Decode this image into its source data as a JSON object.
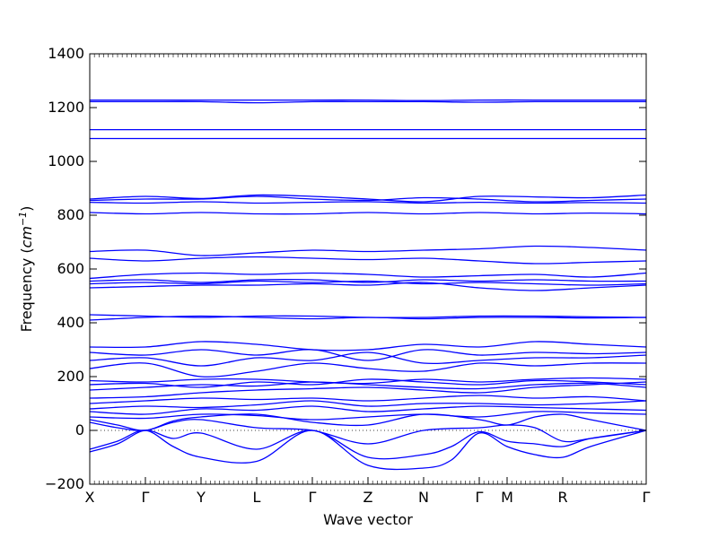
{
  "chart_data": {
    "type": "line",
    "title": "",
    "xlabel": "Wave vector",
    "ylabel": "Frequency ($cm^{-1}$)",
    "ylabel_plain": "Frequency (",
    "ylabel_unit": "cm",
    "ylabel_exp": "−1",
    "ylabel_close": ")",
    "ylim": [
      -200,
      1400
    ],
    "y_ticks": [
      -200,
      0,
      200,
      400,
      600,
      800,
      1000,
      1200,
      1400
    ],
    "x_ticks": [
      "X",
      "Γ",
      "Y",
      "L",
      "Γ",
      "Z",
      "N",
      "Γ",
      "M",
      "R",
      "Γ"
    ],
    "x_tick_positions": [
      0,
      0.1,
      0.2,
      0.3,
      0.4,
      0.5,
      0.6,
      0.7,
      0.75,
      0.85,
      1
    ],
    "grid": false,
    "line_color": "#0000ff",
    "series": [
      {
        "x": [
          0,
          0.05,
          0.1,
          0.15,
          0.2,
          0.3,
          0.4,
          0.5,
          0.6,
          0.65,
          0.7,
          0.75,
          0.8,
          0.85,
          0.9,
          1
        ],
        "y": [
          -70,
          -40,
          0,
          -60,
          -100,
          -115,
          0,
          -130,
          -140,
          -110,
          -10,
          -60,
          -90,
          -100,
          -60,
          0
        ]
      },
      {
        "x": [
          0,
          0.05,
          0.1,
          0.15,
          0.2,
          0.3,
          0.4,
          0.5,
          0.6,
          0.65,
          0.7,
          0.75,
          0.8,
          0.85,
          0.9,
          1
        ],
        "y": [
          -80,
          -50,
          0,
          -30,
          -10,
          -70,
          0,
          -100,
          -90,
          -60,
          -5,
          -40,
          -50,
          -60,
          -30,
          0
        ]
      },
      {
        "x": [
          0,
          0.05,
          0.1,
          0.15,
          0.2,
          0.3,
          0.4,
          0.5,
          0.6,
          0.7,
          0.75,
          0.8,
          0.85,
          0.9,
          1
        ],
        "y": [
          30,
          10,
          0,
          30,
          40,
          10,
          0,
          -50,
          0,
          10,
          20,
          10,
          -40,
          -30,
          0
        ]
      },
      {
        "x": [
          0,
          0.05,
          0.1,
          0.15,
          0.2,
          0.3,
          0.4,
          0.5,
          0.6,
          0.7,
          0.75,
          0.8,
          0.85,
          0.9,
          1
        ],
        "y": [
          40,
          20,
          0,
          35,
          50,
          60,
          30,
          20,
          60,
          40,
          20,
          50,
          60,
          40,
          0
        ]
      },
      {
        "x": [
          0,
          0.1,
          0.2,
          0.3,
          0.4,
          0.5,
          0.6,
          0.7,
          0.8,
          0.9,
          1
        ],
        "y": [
          50,
          45,
          60,
          55,
          40,
          50,
          60,
          50,
          70,
          65,
          60
        ]
      },
      {
        "x": [
          0,
          0.1,
          0.2,
          0.3,
          0.4,
          0.5,
          0.6,
          0.7,
          0.8,
          0.9,
          1
        ],
        "y": [
          70,
          60,
          80,
          75,
          90,
          70,
          80,
          90,
          85,
          80,
          75
        ]
      },
      {
        "x": [
          0,
          0.1,
          0.2,
          0.3,
          0.4,
          0.5,
          0.6,
          0.7,
          0.8,
          0.9,
          1
        ],
        "y": [
          80,
          90,
          85,
          95,
          110,
          90,
          100,
          100,
          95,
          100,
          110
        ]
      },
      {
        "x": [
          0,
          0.1,
          0.2,
          0.3,
          0.4,
          0.5,
          0.6,
          0.7,
          0.8,
          0.9,
          1
        ],
        "y": [
          100,
          110,
          120,
          115,
          120,
          110,
          120,
          130,
          120,
          125,
          110
        ]
      },
      {
        "x": [
          0,
          0.1,
          0.2,
          0.3,
          0.4,
          0.5,
          0.6,
          0.7,
          0.8,
          0.9,
          1
        ],
        "y": [
          120,
          125,
          140,
          150,
          155,
          160,
          150,
          140,
          160,
          170,
          180
        ]
      },
      {
        "x": [
          0,
          0.1,
          0.2,
          0.3,
          0.4,
          0.5,
          0.6,
          0.7,
          0.8,
          0.9,
          1
        ],
        "y": [
          150,
          160,
          170,
          165,
          180,
          170,
          160,
          155,
          170,
          175,
          160
        ]
      },
      {
        "x": [
          0,
          0.1,
          0.2,
          0.3,
          0.4,
          0.5,
          0.6,
          0.7,
          0.8,
          0.9,
          1
        ],
        "y": [
          170,
          175,
          160,
          180,
          170,
          190,
          180,
          170,
          185,
          180,
          170
        ]
      },
      {
        "x": [
          0,
          0.1,
          0.2,
          0.3,
          0.4,
          0.5,
          0.6,
          0.7,
          0.8,
          0.9,
          1
        ],
        "y": [
          185,
          180,
          190,
          190,
          180,
          175,
          190,
          180,
          190,
          195,
          190
        ]
      },
      {
        "x": [
          0,
          0.1,
          0.2,
          0.3,
          0.4,
          0.5,
          0.6,
          0.7,
          0.8,
          0.9,
          1
        ],
        "y": [
          230,
          250,
          200,
          220,
          250,
          230,
          220,
          250,
          240,
          250,
          250
        ]
      },
      {
        "x": [
          0,
          0.1,
          0.2,
          0.3,
          0.4,
          0.5,
          0.6,
          0.7,
          0.8,
          0.9,
          1
        ],
        "y": [
          260,
          270,
          240,
          270,
          260,
          290,
          250,
          260,
          270,
          270,
          280
        ]
      },
      {
        "x": [
          0,
          0.1,
          0.2,
          0.3,
          0.4,
          0.5,
          0.6,
          0.7,
          0.8,
          0.9,
          1
        ],
        "y": [
          290,
          280,
          300,
          280,
          300,
          260,
          300,
          280,
          290,
          285,
          290
        ]
      },
      {
        "x": [
          0,
          0.1,
          0.2,
          0.3,
          0.4,
          0.5,
          0.6,
          0.7,
          0.8,
          0.9,
          1
        ],
        "y": [
          310,
          310,
          330,
          320,
          300,
          300,
          320,
          310,
          330,
          320,
          310
        ]
      },
      {
        "x": [
          0,
          0.1,
          0.2,
          0.3,
          0.4,
          0.5,
          0.6,
          0.7,
          0.8,
          0.9,
          1
        ],
        "y": [
          410,
          420,
          425,
          420,
          415,
          420,
          415,
          420,
          420,
          418,
          420
        ]
      },
      {
        "x": [
          0,
          0.1,
          0.2,
          0.3,
          0.4,
          0.5,
          0.6,
          0.7,
          0.8,
          0.9,
          1
        ],
        "y": [
          430,
          425,
          420,
          425,
          425,
          420,
          420,
          425,
          425,
          422,
          420
        ]
      },
      {
        "x": [
          0,
          0.1,
          0.2,
          0.3,
          0.4,
          0.5,
          0.6,
          0.7,
          0.8,
          0.9,
          1
        ],
        "y": [
          530,
          535,
          540,
          540,
          545,
          540,
          550,
          530,
          520,
          530,
          540
        ]
      },
      {
        "x": [
          0,
          0.1,
          0.2,
          0.3,
          0.4,
          0.5,
          0.6,
          0.7,
          0.8,
          0.9,
          1
        ],
        "y": [
          545,
          550,
          545,
          555,
          550,
          555,
          545,
          550,
          545,
          540,
          545
        ]
      },
      {
        "x": [
          0,
          0.1,
          0.2,
          0.3,
          0.4,
          0.5,
          0.6,
          0.7,
          0.8,
          0.9,
          1
        ],
        "y": [
          555,
          560,
          550,
          560,
          560,
          550,
          560,
          555,
          560,
          555,
          555
        ]
      },
      {
        "x": [
          0,
          0.1,
          0.2,
          0.3,
          0.4,
          0.5,
          0.6,
          0.7,
          0.8,
          0.9,
          1
        ],
        "y": [
          565,
          580,
          585,
          580,
          585,
          580,
          570,
          575,
          580,
          570,
          585
        ]
      },
      {
        "x": [
          0,
          0.1,
          0.2,
          0.3,
          0.4,
          0.5,
          0.6,
          0.7,
          0.8,
          0.9,
          1
        ],
        "y": [
          640,
          630,
          640,
          645,
          640,
          635,
          640,
          630,
          620,
          625,
          630
        ]
      },
      {
        "x": [
          0,
          0.1,
          0.2,
          0.3,
          0.4,
          0.5,
          0.6,
          0.7,
          0.8,
          0.9,
          1
        ],
        "y": [
          665,
          670,
          650,
          660,
          670,
          665,
          670,
          675,
          685,
          680,
          670
        ]
      },
      {
        "x": [
          0,
          0.1,
          0.2,
          0.3,
          0.4,
          0.5,
          0.6,
          0.7,
          0.8,
          0.9,
          1
        ],
        "y": [
          810,
          805,
          810,
          805,
          805,
          810,
          805,
          810,
          805,
          808,
          805
        ]
      },
      {
        "x": [
          0,
          0.1,
          0.2,
          0.3,
          0.4,
          0.5,
          0.6,
          0.7,
          0.8,
          0.9,
          1
        ],
        "y": [
          848,
          845,
          850,
          845,
          848,
          850,
          845,
          848,
          845,
          847,
          845
        ]
      },
      {
        "x": [
          0,
          0.1,
          0.2,
          0.3,
          0.4,
          0.5,
          0.6,
          0.7,
          0.8,
          0.9,
          1
        ],
        "y": [
          855,
          860,
          860,
          870,
          860,
          855,
          865,
          860,
          850,
          855,
          860
        ]
      },
      {
        "x": [
          0,
          0.1,
          0.2,
          0.3,
          0.4,
          0.5,
          0.6,
          0.7,
          0.8,
          0.9,
          1
        ],
        "y": [
          860,
          870,
          862,
          875,
          870,
          860,
          850,
          870,
          868,
          865,
          875
        ]
      },
      {
        "x": [
          0,
          0.1,
          0.2,
          0.3,
          0.4,
          0.5,
          0.6,
          0.7,
          0.8,
          0.9,
          1
        ],
        "y": [
          1085,
          1085,
          1085,
          1085,
          1085,
          1085,
          1085,
          1085,
          1085,
          1085,
          1085
        ]
      },
      {
        "x": [
          0,
          0.1,
          0.2,
          0.3,
          0.4,
          0.5,
          0.6,
          0.7,
          0.8,
          0.9,
          1
        ],
        "y": [
          1118,
          1118,
          1118,
          1118,
          1118,
          1118,
          1118,
          1118,
          1118,
          1118,
          1118
        ]
      },
      {
        "x": [
          0,
          0.1,
          0.2,
          0.3,
          0.4,
          0.5,
          0.6,
          0.7,
          0.8,
          0.9,
          1
        ],
        "y": [
          1222,
          1222,
          1222,
          1218,
          1222,
          1222,
          1222,
          1220,
          1222,
          1222,
          1222
        ]
      },
      {
        "x": [
          0,
          0.1,
          0.2,
          0.3,
          0.4,
          0.5,
          0.6,
          0.7,
          0.8,
          0.9,
          1
        ],
        "y": [
          1228,
          1228,
          1228,
          1228,
          1228,
          1228,
          1226,
          1228,
          1228,
          1228,
          1228
        ]
      }
    ]
  }
}
